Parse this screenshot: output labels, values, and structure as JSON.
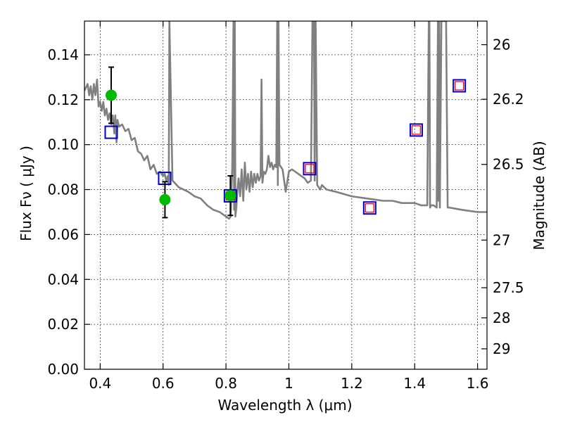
{
  "chart_data": {
    "type": "scatter",
    "title": "",
    "xlabel": "Wavelength  λ (μm)",
    "ylabel": "Flux  Fν  ( μJy )",
    "ylabel_right": "Magnitude (AB)",
    "xlim": [
      0.35,
      1.63
    ],
    "ylim": [
      0.0,
      0.155
    ],
    "grid": true,
    "x_ticks": [
      0.4,
      0.6,
      0.8,
      1.0,
      1.2,
      1.4,
      1.6
    ],
    "x_tick_labels": [
      "0.4",
      "0.6",
      "0.8",
      "1",
      "1.2",
      "1.4",
      "1.6"
    ],
    "y_ticks": [
      0.0,
      0.02,
      0.04,
      0.06,
      0.08,
      0.1,
      0.12,
      0.14
    ],
    "y_tick_labels": [
      "0.00",
      "0.02",
      "0.04",
      "0.06",
      "0.08",
      "0.10",
      "0.12",
      "0.14"
    ],
    "right_ticks": [
      {
        "label": "26",
        "flux": 0.1445
      },
      {
        "label": "26.2",
        "flux": 0.1202
      },
      {
        "label": "26.5",
        "flux": 0.0912
      },
      {
        "label": "27",
        "flux": 0.0575
      },
      {
        "label": "27.5",
        "flux": 0.0363
      },
      {
        "label": "28",
        "flux": 0.0229
      },
      {
        "label": "29",
        "flux": 0.0091
      }
    ],
    "series": [
      {
        "style": "line",
        "color": "#808080",
        "x": [
          0.35,
          0.36,
          0.365,
          0.37,
          0.375,
          0.38,
          0.385,
          0.39,
          0.395,
          0.4,
          0.405,
          0.41,
          0.415,
          0.42,
          0.425,
          0.43,
          0.435,
          0.44,
          0.445,
          0.448,
          0.452,
          0.455,
          0.46,
          0.47,
          0.48,
          0.49,
          0.5,
          0.51,
          0.52,
          0.53,
          0.54,
          0.55,
          0.56,
          0.57,
          0.58,
          0.59,
          0.6,
          0.605,
          0.61,
          0.615,
          0.618,
          0.62,
          0.63,
          0.65,
          0.68,
          0.7,
          0.72,
          0.74,
          0.76,
          0.78,
          0.8,
          0.81,
          0.815,
          0.82,
          0.824,
          0.826,
          0.828,
          0.83,
          0.833,
          0.836,
          0.84,
          0.845,
          0.85,
          0.855,
          0.86,
          0.865,
          0.87,
          0.875,
          0.88,
          0.885,
          0.89,
          0.895,
          0.9,
          0.905,
          0.91,
          0.913,
          0.916,
          0.92,
          0.925,
          0.93,
          0.935,
          0.94,
          0.945,
          0.95,
          0.955,
          0.96,
          0.963,
          0.965,
          0.967,
          0.97,
          0.975,
          0.98,
          0.99,
          1.0,
          1.01,
          1.02,
          1.03,
          1.04,
          1.05,
          1.06,
          1.07,
          1.075,
          1.08,
          1.082,
          1.085,
          1.09,
          1.095,
          1.1,
          1.105,
          1.12,
          1.15,
          1.2,
          1.25,
          1.3,
          1.33,
          1.36,
          1.38,
          1.4,
          1.42,
          1.44,
          1.445,
          1.447,
          1.449,
          1.452,
          1.46,
          1.47,
          1.474,
          1.476,
          1.478,
          1.48,
          1.485,
          1.49,
          1.495,
          1.5,
          1.505,
          1.51,
          1.55,
          1.6,
          1.63
        ],
        "y": [
          0.124,
          0.127,
          0.122,
          0.126,
          0.12,
          0.127,
          0.122,
          0.129,
          0.117,
          0.119,
          0.115,
          0.119,
          0.113,
          0.116,
          0.111,
          0.114,
          0.109,
          0.113,
          0.105,
          0.113,
          0.101,
          0.111,
          0.108,
          0.109,
          0.106,
          0.107,
          0.102,
          0.103,
          0.097,
          0.096,
          0.093,
          0.095,
          0.089,
          0.091,
          0.087,
          0.088,
          0.086,
          0.087,
          0.084,
          0.086,
          0.082,
          0.155,
          0.084,
          0.081,
          0.079,
          0.077,
          0.076,
          0.073,
          0.071,
          0.07,
          0.068,
          0.067,
          0.068,
          0.09,
          0.155,
          0.071,
          0.155,
          0.068,
          0.072,
          0.079,
          0.085,
          0.077,
          0.089,
          0.075,
          0.092,
          0.08,
          0.087,
          0.079,
          0.088,
          0.081,
          0.087,
          0.083,
          0.087,
          0.084,
          0.086,
          0.129,
          0.083,
          0.088,
          0.087,
          0.089,
          0.095,
          0.09,
          0.092,
          0.089,
          0.091,
          0.09,
          0.155,
          0.082,
          0.155,
          0.091,
          0.09,
          0.089,
          0.079,
          0.088,
          0.089,
          0.088,
          0.087,
          0.086,
          0.085,
          0.083,
          0.084,
          0.155,
          0.155,
          0.084,
          0.155,
          0.082,
          0.081,
          0.08,
          0.082,
          0.08,
          0.079,
          0.077,
          0.076,
          0.075,
          0.075,
          0.074,
          0.074,
          0.074,
          0.073,
          0.073,
          0.155,
          0.155,
          0.072,
          0.073,
          0.073,
          0.072,
          0.155,
          0.075,
          0.155,
          0.072,
          0.155,
          0.155,
          0.155,
          0.155,
          0.072,
          0.072,
          0.071,
          0.07,
          0.07
        ]
      },
      {
        "style": "square",
        "color": "#0000cc",
        "x": [
          0.435,
          0.605,
          0.814,
          1.066,
          1.257,
          1.405,
          1.542
        ],
        "y": [
          0.1055,
          0.085,
          0.0772,
          0.0893,
          0.0718,
          0.1065,
          0.1262
        ]
      },
      {
        "style": "square",
        "color": "#ff0000",
        "x": [
          0.814,
          1.066,
          1.257,
          1.405,
          1.542
        ],
        "y": [
          0.0772,
          0.0893,
          0.0718,
          0.1065,
          0.1262
        ]
      },
      {
        "style": "point-errorbar",
        "color": "#00bb00",
        "x": [
          0.435,
          0.606,
          0.814
        ],
        "y": [
          0.122,
          0.0755,
          0.0773
        ],
        "yerr": [
          0.0125,
          0.008,
          0.0088
        ]
      }
    ]
  }
}
